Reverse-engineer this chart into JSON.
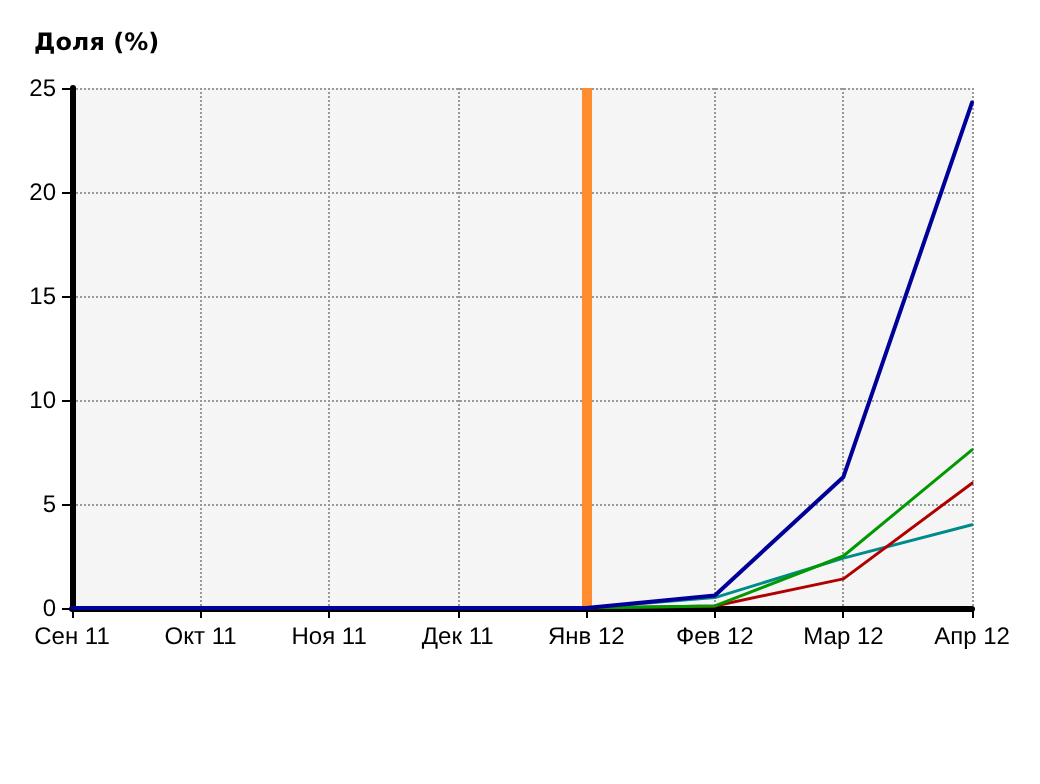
{
  "chart_data": {
    "type": "line",
    "ylabel": "Доля (%)",
    "categories": [
      "Сен 11",
      "Окт 11",
      "Ноя 11",
      "Дек 11",
      "Янв 12",
      "Фев 12",
      "Мар 12",
      "Апр 12"
    ],
    "ylim": [
      0,
      25
    ],
    "yticks": [
      0,
      5,
      10,
      15,
      20,
      25
    ],
    "grid": true,
    "line_style": "solid",
    "series": [
      {
        "color": "#008b8b",
        "values": [
          null,
          null,
          null,
          null,
          0,
          0.5,
          2.4,
          4.0
        ]
      },
      {
        "color": "#b00000",
        "values": [
          null,
          null,
          null,
          null,
          0,
          0.1,
          1.4,
          6.0
        ]
      },
      {
        "color": "#009900",
        "values": [
          null,
          null,
          null,
          null,
          0,
          0.1,
          2.5,
          7.6
        ]
      },
      {
        "color": "#000099",
        "values": [
          0,
          0,
          0,
          0,
          0,
          0.6,
          6.3,
          24.3
        ]
      }
    ],
    "ref_lines": [
      {
        "axis": "x",
        "value": "Янв 12",
        "color": "#ff8c2e"
      }
    ]
  }
}
